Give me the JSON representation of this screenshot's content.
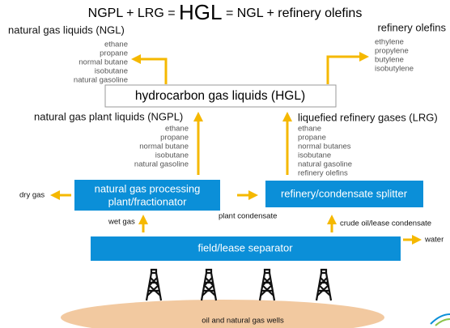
{
  "title": {
    "left": "NGPL + LRG =",
    "center": "HGL",
    "right": "= NGL + refinery olefins"
  },
  "ngl": {
    "heading": "natural gas liquids (NGL)",
    "items": [
      "ethane",
      "propane",
      "normal butane",
      "isobutane",
      "natural gasoline"
    ]
  },
  "olefins": {
    "heading": "refinery olefins",
    "items": [
      "ethylene",
      "propylene",
      "butylene",
      "isobutylene"
    ]
  },
  "hgl_box": "hydrocarbon gas liquids (HGL)",
  "ngpl": {
    "heading": "natural gas plant liquids (NGPL)",
    "items": [
      "ethane",
      "propane",
      "normal butane",
      "isobutane",
      "natural gasoline"
    ]
  },
  "lrg": {
    "heading": "liquefied refinery gases (LRG)",
    "items": [
      "ethane",
      "propane",
      "normal butanes",
      "isobutane",
      "natural gasoline",
      "refinery olefins"
    ]
  },
  "processing_box": [
    "natural gas processing",
    "plant/fractionator"
  ],
  "splitter_box": "refinery/condensate splitter",
  "separator_box": "field/lease separator",
  "labels": {
    "dry_gas": "dry gas",
    "wet_gas": "wet gas",
    "plant_condensate": "plant condensate",
    "crude_oil": "crude oil/lease condensate",
    "water": "water",
    "wells": "oil and natural gas wells"
  }
}
